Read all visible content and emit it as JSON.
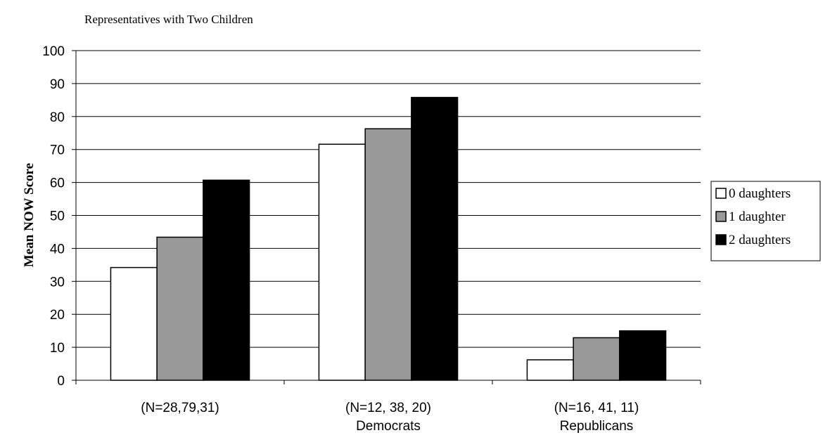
{
  "chart_data": {
    "type": "bar",
    "title": "Representatives with Two Children",
    "ylabel": "Mean NOW Score",
    "xlabel": "",
    "ylim": [
      0,
      100
    ],
    "yticks": [
      0,
      10,
      20,
      30,
      40,
      50,
      60,
      70,
      80,
      90,
      100
    ],
    "grid": true,
    "legend_position": "right",
    "categories": [
      {
        "line1": "(N=28,79,31)",
        "line2": ""
      },
      {
        "line1": "(N=12, 38, 20)",
        "line2": "Democrats"
      },
      {
        "line1": "(N=16, 41, 11)",
        "line2": "Republicans"
      }
    ],
    "series": [
      {
        "name": "0 daughters",
        "color": "#ffffff",
        "values": [
          34.2,
          71.6,
          6.2
        ]
      },
      {
        "name": "1 daughter",
        "color": "#999999",
        "values": [
          43.4,
          76.3,
          12.9
        ]
      },
      {
        "name": "2 daughters",
        "color": "#000000",
        "values": [
          60.7,
          85.8,
          15.0
        ]
      }
    ]
  }
}
